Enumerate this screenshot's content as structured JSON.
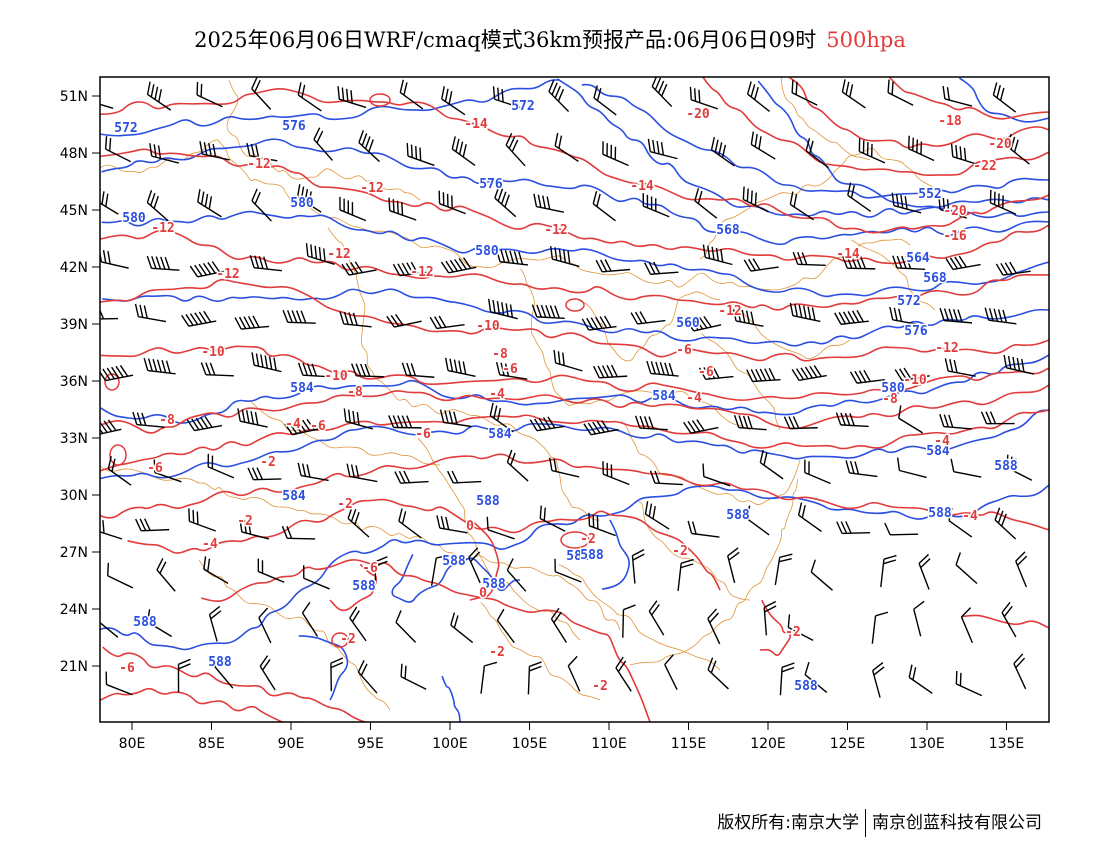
{
  "header": {
    "title_main": "2025年06月06日WRF/cmaq模式36km预报产品:06月06日09时",
    "title_level": "500hpa"
  },
  "map": {
    "lon_range": [
      78,
      138
    ],
    "lat_range": [
      18,
      52
    ],
    "lon_ticks": [
      "80E",
      "85E",
      "90E",
      "95E",
      "100E",
      "105E",
      "110E",
      "115E",
      "120E",
      "125E",
      "130E",
      "135E"
    ],
    "lat_ticks": [
      "51N",
      "48N",
      "45N",
      "42N",
      "39N",
      "36N",
      "33N",
      "30N",
      "27N",
      "24N",
      "21N"
    ],
    "height_contour_color": "#2b4fe0",
    "temperature_contour_color": "#e23b3b",
    "wind_barb_color": "#000000",
    "boundary_color": "#e0953a",
    "height_labels": [
      "572",
      "572",
      "576",
      "576",
      "580",
      "580",
      "580",
      "584",
      "584",
      "584",
      "584",
      "584",
      "560",
      "564",
      "568",
      "568",
      "552",
      "572",
      "576",
      "580",
      "584",
      "588",
      "588",
      "588",
      "588",
      "588",
      "588",
      "588",
      "588",
      "588",
      "588",
      "588"
    ],
    "temperature_labels": [
      "-14",
      "-20",
      "-18",
      "-20",
      "-22",
      "-12",
      "-12",
      "-14",
      "-12",
      "-12",
      "-12",
      "-12",
      "-12",
      "-20",
      "-16",
      "-14",
      "-12",
      "-10",
      "-10",
      "-10",
      "-8",
      "-6",
      "-6",
      "-6",
      "-4",
      "-4",
      "-4",
      "-8",
      "-12",
      "-10",
      "-8",
      "-6",
      "-8",
      "-6",
      "-4",
      "-6",
      "-2",
      "-2",
      "-2",
      "-4",
      "-6",
      "-2",
      "-2",
      "0",
      "-2",
      "0",
      "-2",
      "-2",
      "-2",
      "-6",
      "-4"
    ]
  },
  "footer": {
    "copyright": "版权所有:南京大学",
    "company": "南京创蓝科技有限公司"
  }
}
